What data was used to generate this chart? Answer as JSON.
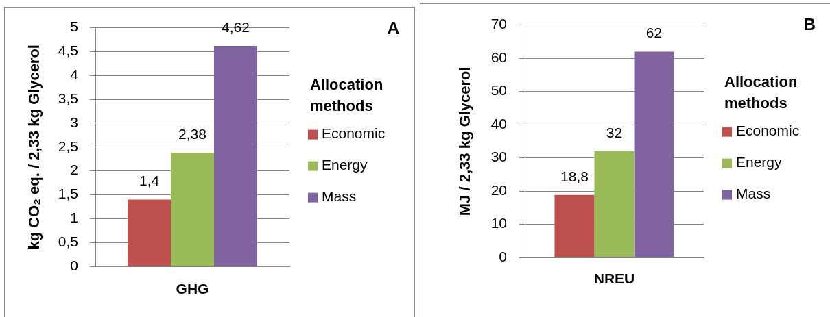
{
  "chart_data": [
    {
      "type": "bar",
      "annotations": [
        "A"
      ],
      "ylabel": "kg CO₂ eq. / 2,33 kg Glycerol",
      "xlabel": "GHG",
      "legend_title": "Allocation methods",
      "categories": [
        null
      ],
      "series": [
        {
          "name": "Economic",
          "color": "#c0504d",
          "values": [
            1.4
          ],
          "value_labels": [
            "1,4"
          ]
        },
        {
          "name": "Energy",
          "color": "#9bbb59",
          "values": [
            2.38
          ],
          "value_labels": [
            "2,38"
          ]
        },
        {
          "name": "Mass",
          "color": "#8064a2",
          "values": [
            4.62
          ],
          "value_labels": [
            "4,62"
          ]
        }
      ],
      "ylim": [
        0,
        5
      ],
      "yticks": [
        0,
        {
          "value": 0.5,
          "label": "0,5"
        },
        1,
        {
          "value": 1.5,
          "label": "1,5"
        },
        2,
        {
          "value": 2.5,
          "label": "2,5"
        },
        3,
        {
          "value": 3.5,
          "label": "3,5"
        },
        4,
        {
          "value": 4.5,
          "label": "4,5"
        },
        5
      ],
      "grid": "y",
      "legend": "right"
    },
    {
      "type": "bar",
      "annotations": [
        "B"
      ],
      "ylabel": "MJ / 2,33 kg Glycerol",
      "xlabel": "NREU",
      "legend_title": "Allocation methods",
      "categories": [
        null
      ],
      "series": [
        {
          "name": "Economic",
          "color": "#c0504d",
          "values": [
            18.8
          ],
          "value_labels": [
            "18,8"
          ]
        },
        {
          "name": "Energy",
          "color": "#9bbb59",
          "values": [
            32
          ],
          "value_labels": [
            "32"
          ]
        },
        {
          "name": "Mass",
          "color": "#8064a2",
          "values": [
            62
          ],
          "value_labels": [
            "62"
          ]
        }
      ],
      "ylim": [
        0,
        70
      ],
      "yticks": [
        0,
        10,
        20,
        30,
        40,
        50,
        60,
        70
      ],
      "grid": "y",
      "legend": "right"
    }
  ]
}
